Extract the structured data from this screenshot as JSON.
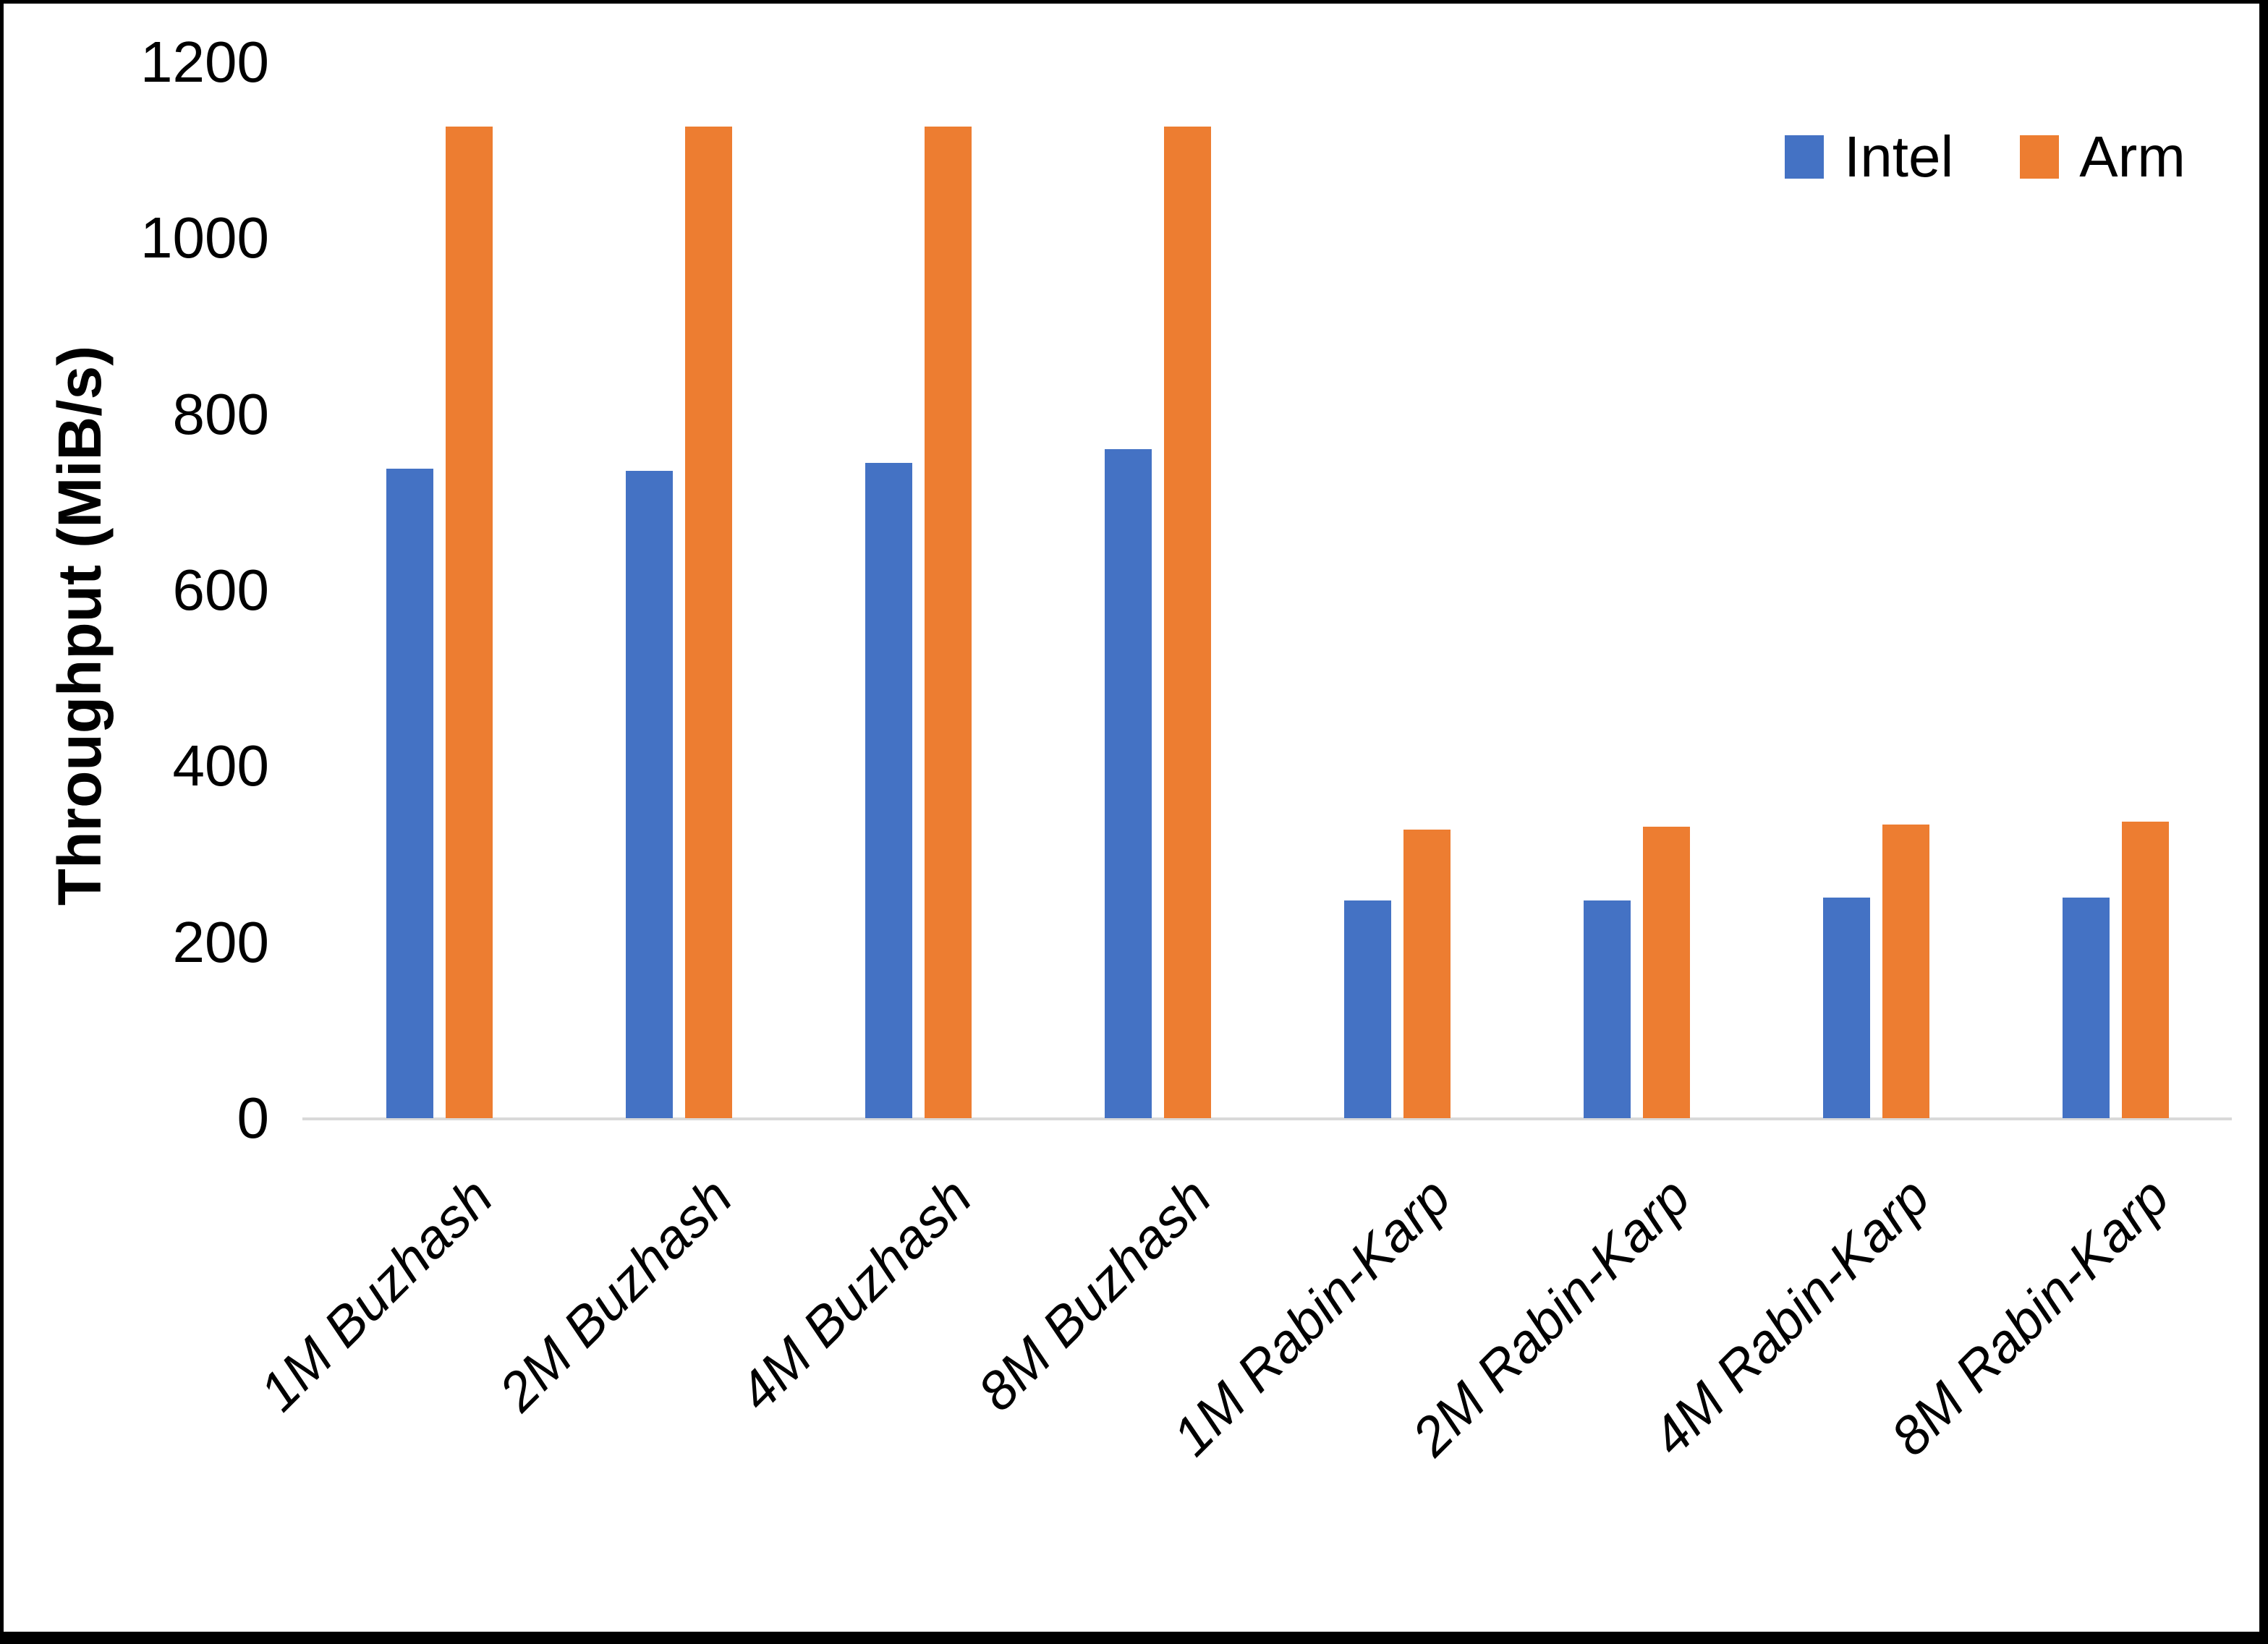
{
  "chart_data": {
    "type": "bar",
    "title": "",
    "xlabel": "",
    "ylabel": "Throughput (MiB/s)",
    "categories": [
      "1M Buzhash",
      "2M Buzhash",
      "4M Buzhash",
      "8M Buzhash",
      "1M Rabin-Karp",
      "2M Rabin-Karp",
      "4M Rabin-Karp",
      "8M Rabin-Karp"
    ],
    "series": [
      {
        "name": "Intel",
        "color": "#4472C4",
        "values": [
          738,
          736,
          745,
          760,
          247,
          247,
          251,
          251
        ]
      },
      {
        "name": "Arm",
        "color": "#ED7D31",
        "values": [
          1127,
          1127,
          1127,
          1127,
          328,
          331,
          334,
          337
        ]
      }
    ],
    "ylim": [
      0,
      1200
    ],
    "yticks": [
      0,
      200,
      400,
      600,
      800,
      1000,
      1200
    ],
    "grid": false,
    "legend_position": "top-right",
    "axis_line_color": "#D9D9D9",
    "background": "#FFFFFF",
    "frame_color": "#000000"
  }
}
